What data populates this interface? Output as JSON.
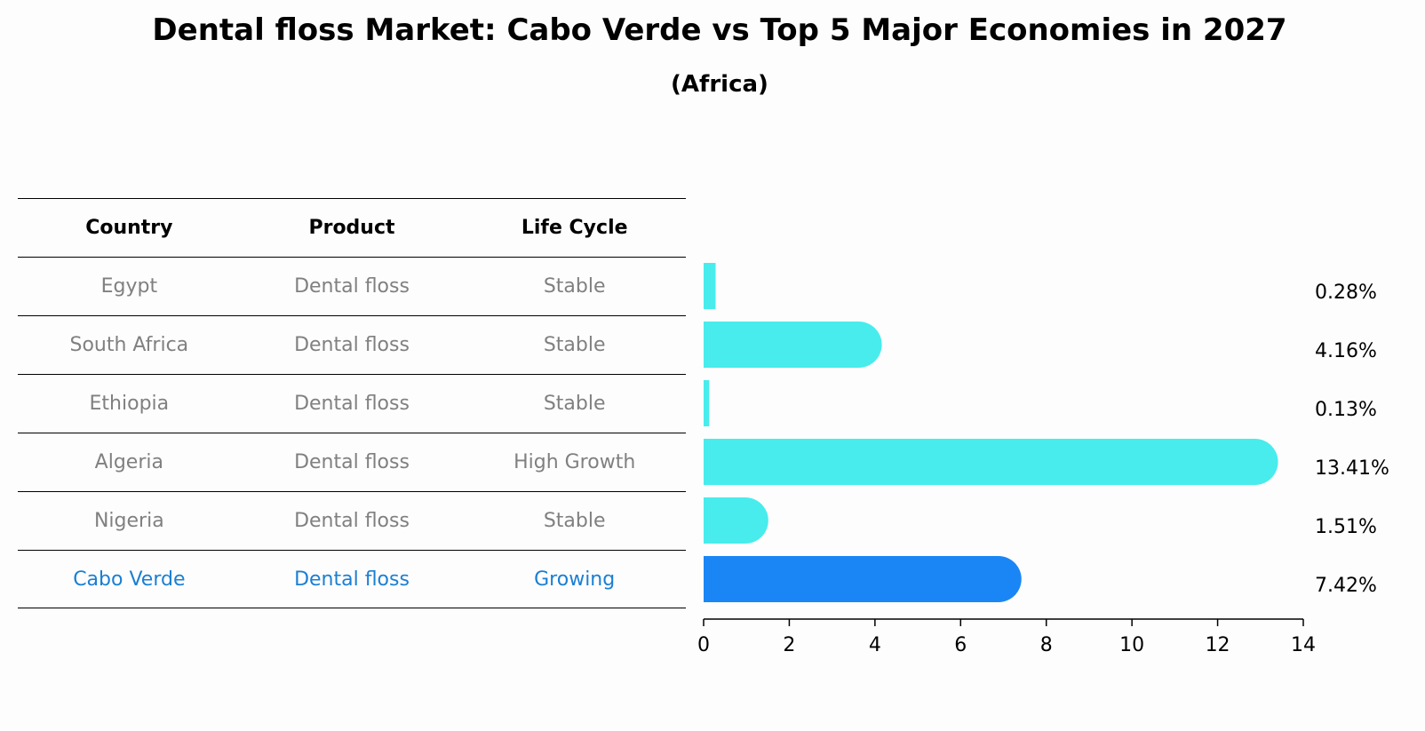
{
  "title": "Dental floss Market: Cabo Verde vs Top 5 Major Economies in 2027",
  "subtitle": "(Africa)",
  "table": {
    "headers": [
      "Country",
      "Product",
      "Life Cycle"
    ],
    "rows": [
      {
        "country": "Egypt",
        "product": "Dental floss",
        "life_cycle": "Stable"
      },
      {
        "country": "South Africa",
        "product": "Dental floss",
        "life_cycle": "Stable"
      },
      {
        "country": "Ethiopia",
        "product": "Dental floss",
        "life_cycle": "Stable"
      },
      {
        "country": "Algeria",
        "product": "Dental floss",
        "life_cycle": "High Growth"
      },
      {
        "country": "Nigeria",
        "product": "Dental floss",
        "life_cycle": "Stable"
      },
      {
        "country": "Cabo Verde",
        "product": "Dental floss",
        "life_cycle": "Growing"
      }
    ]
  },
  "colors": {
    "bar": "#48ecec",
    "highlight": "#1a86f5",
    "highlight_text": "#1a7fd4",
    "muted_text": "#808080"
  },
  "chart_data": {
    "type": "bar",
    "orientation": "horizontal",
    "categories": [
      "Egypt",
      "South Africa",
      "Ethiopia",
      "Algeria",
      "Nigeria",
      "Cabo Verde"
    ],
    "values": [
      0.28,
      4.16,
      0.13,
      13.41,
      1.51,
      7.42
    ],
    "value_labels": [
      "0.28%",
      "4.16%",
      "0.13%",
      "13.41%",
      "1.51%",
      "7.42%"
    ],
    "highlight_category": "Cabo Verde",
    "xlim": [
      0,
      14
    ],
    "xticks": [
      0,
      2,
      4,
      6,
      8,
      10,
      12,
      14
    ],
    "grid": false
  }
}
